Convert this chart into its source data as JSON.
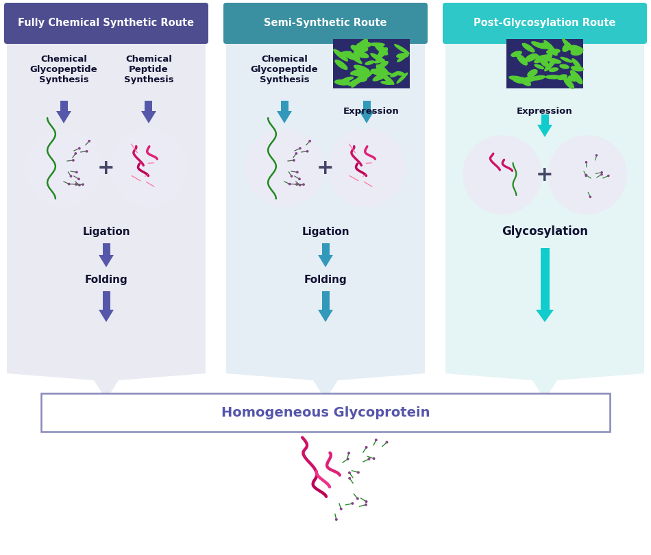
{
  "title_col1": "Fully Chemical Synthetic Route",
  "title_col2": "Semi-Synthetic Route",
  "title_col3": "Post-Glycosylation Route",
  "color_col1": "#4d4d8f",
  "color_col2": "#3a8fa0",
  "color_col3": "#2ec8c8",
  "bg_col1": "#eaeaf2",
  "bg_col2": "#e5eef4",
  "bg_col3": "#e5f4f4",
  "arrow_col1": "#5558aa",
  "arrow_col2": "#3399bb",
  "arrow_col3": "#11cccc",
  "label_col1_left": "Chemical\nGlycopeptide\nSynthesis",
  "label_col1_right": "Chemical\nPeptide\nSynthesis",
  "label_col2_left": "Chemical\nGlycopeptide\nSynthesis",
  "label_col2_right": "Expression",
  "label_col3_center": "Expression",
  "ligation_label": "Ligation",
  "folding_label": "Folding",
  "glycosylation_label": "Glycosylation",
  "final_box_label": "Homogeneous Glycoprotein",
  "final_box_color": "#5555aa",
  "circle_color": "#ebebf5",
  "plus_color": "#444466",
  "text_color": "#111133",
  "bact_bg": "#2a2a6a",
  "bact_green": "#55cc33"
}
